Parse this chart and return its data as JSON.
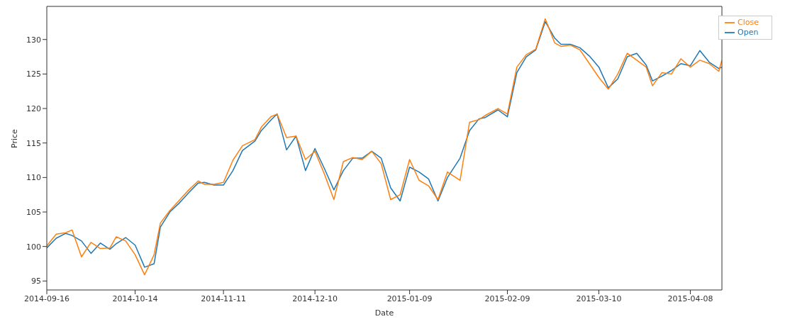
{
  "chart_data": {
    "type": "line",
    "xlabel": "Date",
    "ylabel": "Price",
    "x": [
      "2014-09-16",
      "2014-09-19",
      "2014-09-22",
      "2014-09-24",
      "2014-09-27",
      "2014-09-30",
      "2014-10-03",
      "2014-10-06",
      "2014-10-08",
      "2014-10-11",
      "2014-10-14",
      "2014-10-17",
      "2014-10-20",
      "2014-10-22",
      "2014-10-25",
      "2014-10-28",
      "2014-10-31",
      "2014-11-03",
      "2014-11-05",
      "2014-11-08",
      "2014-11-11",
      "2014-11-14",
      "2014-11-17",
      "2014-11-21",
      "2014-11-23",
      "2014-11-26",
      "2014-11-28",
      "2014-12-01",
      "2014-12-04",
      "2014-12-07",
      "2014-12-10",
      "2014-12-13",
      "2014-12-16",
      "2014-12-19",
      "2014-12-22",
      "2014-12-25",
      "2014-12-28",
      "2014-12-31",
      "2015-01-03",
      "2015-01-06",
      "2015-01-09",
      "2015-01-12",
      "2015-01-15",
      "2015-01-18",
      "2015-01-21",
      "2015-01-25",
      "2015-01-28",
      "2015-01-31",
      "2015-02-02",
      "2015-02-06",
      "2015-02-09",
      "2015-02-12",
      "2015-02-15",
      "2015-02-18",
      "2015-02-21",
      "2015-02-24",
      "2015-02-26",
      "2015-03-01",
      "2015-03-04",
      "2015-03-07",
      "2015-03-10",
      "2015-03-13",
      "2015-03-16",
      "2015-03-19",
      "2015-03-22",
      "2015-03-25",
      "2015-03-27",
      "2015-03-30",
      "2015-04-02",
      "2015-04-05",
      "2015-04-08",
      "2015-04-11",
      "2015-04-14",
      "2015-04-17",
      "2015-04-18"
    ],
    "series": [
      {
        "name": "Open",
        "color": "#1f77b4",
        "values": [
          99.8,
          101.2,
          101.9,
          101.6,
          100.8,
          99.0,
          100.5,
          99.6,
          100.4,
          101.3,
          100.2,
          97.0,
          97.5,
          102.8,
          105.0,
          106.3,
          107.8,
          109.2,
          109.3,
          108.9,
          108.9,
          111.0,
          113.9,
          115.3,
          116.8,
          118.3,
          119.2,
          114.0,
          116.0,
          111.0,
          114.2,
          111.3,
          108.2,
          111.0,
          112.8,
          112.8,
          113.8,
          112.8,
          108.5,
          106.6,
          111.5,
          110.8,
          109.8,
          106.6,
          110.0,
          112.8,
          116.8,
          118.5,
          118.7,
          119.8,
          118.8,
          125.2,
          127.5,
          128.5,
          132.6,
          130.2,
          129.3,
          129.3,
          128.8,
          127.6,
          126.0,
          123.0,
          124.3,
          127.5,
          128.0,
          126.3,
          124.0,
          124.7,
          125.5,
          126.5,
          126.2,
          128.4,
          126.7,
          125.8,
          126.0
        ]
      },
      {
        "name": "Close",
        "color": "#ff7f0e",
        "values": [
          100.1,
          101.8,
          102.0,
          102.4,
          98.5,
          100.6,
          99.7,
          99.8,
          101.4,
          100.8,
          98.8,
          95.9,
          98.8,
          103.4,
          105.2,
          106.7,
          108.2,
          109.5,
          109.0,
          109.0,
          109.3,
          112.5,
          114.6,
          115.5,
          117.3,
          118.8,
          119.2,
          115.8,
          116.0,
          112.6,
          113.8,
          110.5,
          106.8,
          112.3,
          112.9,
          112.6,
          113.8,
          112.0,
          106.8,
          107.5,
          112.6,
          109.6,
          108.8,
          106.8,
          110.8,
          109.6,
          118.0,
          118.4,
          119.0,
          120.0,
          119.2,
          126.0,
          127.8,
          128.6,
          133.0,
          129.5,
          129.0,
          129.2,
          128.5,
          126.5,
          124.5,
          122.8,
          125.0,
          128.0,
          127.0,
          126.0,
          123.3,
          125.2,
          125.0,
          127.2,
          126.0,
          127.0,
          126.5,
          125.4,
          127.0
        ]
      }
    ],
    "xlim": [
      "2014-09-16",
      "2015-04-18"
    ],
    "xticks": [
      "2014-09-16",
      "2014-10-14",
      "2014-11-11",
      "2014-12-10",
      "2015-01-09",
      "2015-02-09",
      "2015-03-10",
      "2015-04-08"
    ],
    "ylim": [
      93.7,
      134.8
    ],
    "yticks": [
      95,
      100,
      105,
      110,
      115,
      120,
      125,
      130
    ],
    "legend": "top right",
    "line_style": "solid",
    "marker": "none"
  }
}
